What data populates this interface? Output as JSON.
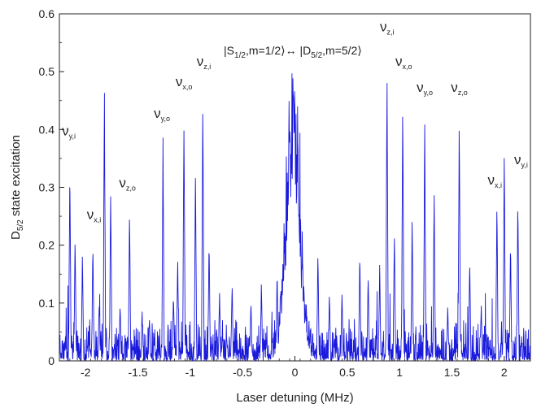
{
  "chart_data": {
    "type": "line",
    "xlabel": "Laser detuning (MHz)",
    "ylabel_main": "D",
    "ylabel_sub": "5/2",
    "ylabel_rest": " state excitation",
    "xlim": [
      -2.25,
      2.25
    ],
    "ylim": [
      0,
      0.6
    ],
    "x_ticks": [
      -2,
      -1.5,
      -1,
      -0.5,
      0,
      0.5,
      1,
      1.5,
      2
    ],
    "x_tick_labels": [
      "-2",
      "-1.5",
      "-1",
      "-0.5",
      "0",
      "0.5",
      "1",
      "1.5",
      "2"
    ],
    "y_ticks": [
      0,
      0.1,
      0.2,
      0.3,
      0.4,
      0.5,
      0.6
    ],
    "y_tick_labels": [
      "0",
      "0.1",
      "0.2",
      "0.3",
      "0.4",
      "0.5",
      "0.6"
    ],
    "grid": false,
    "line_color": "#1a1adc",
    "series": [
      {
        "peaks": [
          {
            "x": -2.15,
            "y": 0.35
          },
          {
            "x": -2.1,
            "y": 0.22
          },
          {
            "x": -2.03,
            "y": 0.19
          },
          {
            "x": -1.93,
            "y": 0.21
          },
          {
            "x": -1.87,
            "y": 0.1
          },
          {
            "x": -1.82,
            "y": 0.48
          },
          {
            "x": -1.76,
            "y": 0.31
          },
          {
            "x": -1.67,
            "y": 0.1
          },
          {
            "x": -1.58,
            "y": 0.27
          },
          {
            "x": -1.46,
            "y": 0.09
          },
          {
            "x": -1.39,
            "y": 0.08
          },
          {
            "x": -1.26,
            "y": 0.39
          },
          {
            "x": -1.16,
            "y": 0.12
          },
          {
            "x": -1.12,
            "y": 0.19
          },
          {
            "x": -1.06,
            "y": 0.44
          },
          {
            "x": -0.95,
            "y": 0.35
          },
          {
            "x": -0.88,
            "y": 0.47
          },
          {
            "x": -0.82,
            "y": 0.21
          },
          {
            "x": -0.72,
            "y": 0.12
          },
          {
            "x": -0.6,
            "y": 0.14
          },
          {
            "x": -0.42,
            "y": 0.11
          },
          {
            "x": -0.32,
            "y": 0.14
          },
          {
            "x": -0.17,
            "y": 0.16
          },
          {
            "x": 0.22,
            "y": 0.2
          },
          {
            "x": 0.33,
            "y": 0.12
          },
          {
            "x": 0.45,
            "y": 0.12
          },
          {
            "x": 0.62,
            "y": 0.19
          },
          {
            "x": 0.7,
            "y": 0.15
          },
          {
            "x": 0.81,
            "y": 0.17
          },
          {
            "x": 0.88,
            "y": 0.53
          },
          {
            "x": 0.95,
            "y": 0.24
          },
          {
            "x": 1.03,
            "y": 0.47
          },
          {
            "x": 1.12,
            "y": 0.26
          },
          {
            "x": 1.24,
            "y": 0.43
          },
          {
            "x": 1.33,
            "y": 0.31
          },
          {
            "x": 1.46,
            "y": 0.1
          },
          {
            "x": 1.57,
            "y": 0.43
          },
          {
            "x": 1.67,
            "y": 0.18
          },
          {
            "x": 1.78,
            "y": 0.1
          },
          {
            "x": 1.93,
            "y": 0.28
          },
          {
            "x": 2.0,
            "y": 0.37
          },
          {
            "x": 2.06,
            "y": 0.21
          },
          {
            "x": 2.13,
            "y": 0.3
          }
        ],
        "center": {
          "x": -0.02,
          "y": 0.49
        },
        "baseline": 0.035
      }
    ],
    "annotations": [
      {
        "main": "ν",
        "sub": "y,i",
        "x": -2.16,
        "y": 0.39
      },
      {
        "main": "ν",
        "sub": "x,i",
        "x": -1.92,
        "y": 0.245
      },
      {
        "main": "ν",
        "sub": "z,o",
        "x": -1.6,
        "y": 0.3
      },
      {
        "main": "ν",
        "sub": "y,o",
        "x": -1.27,
        "y": 0.42
      },
      {
        "main": "ν",
        "sub": "x,o",
        "x": -1.06,
        "y": 0.475
      },
      {
        "main": "ν",
        "sub": "z,i",
        "x": -0.87,
        "y": 0.51
      },
      {
        "main": "ν",
        "sub": "z,i",
        "x": 0.88,
        "y": 0.57
      },
      {
        "main": "ν",
        "sub": "x,o",
        "x": 1.04,
        "y": 0.51
      },
      {
        "main": "ν",
        "sub": "y,o",
        "x": 1.24,
        "y": 0.465
      },
      {
        "main": "ν",
        "sub": "z,o",
        "x": 1.57,
        "y": 0.465
      },
      {
        "main": "ν",
        "sub": "x,i",
        "x": 1.91,
        "y": 0.305
      },
      {
        "main": "ν",
        "sub": "y,i",
        "x": 2.16,
        "y": 0.34
      }
    ],
    "transition_label": {
      "parts": [
        {
          "text": "|S",
          "sub": false
        },
        {
          "text": "1/2",
          "sub": true
        },
        {
          "text": ",m=1/2⟩↔ |D",
          "sub": false
        },
        {
          "text": "5/2",
          "sub": true
        },
        {
          "text": ",m=5/2⟩",
          "sub": false
        }
      ],
      "x": -0.02,
      "y": 0.53
    }
  }
}
